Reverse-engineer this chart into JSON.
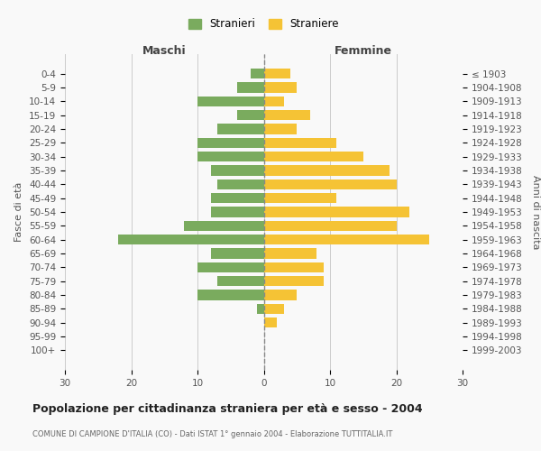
{
  "age_groups": [
    "0-4",
    "5-9",
    "10-14",
    "15-19",
    "20-24",
    "25-29",
    "30-34",
    "35-39",
    "40-44",
    "45-49",
    "50-54",
    "55-59",
    "60-64",
    "65-69",
    "70-74",
    "75-79",
    "80-84",
    "85-89",
    "90-94",
    "95-99",
    "100+"
  ],
  "birth_years": [
    "1999-2003",
    "1994-1998",
    "1989-1993",
    "1984-1988",
    "1979-1983",
    "1974-1978",
    "1969-1973",
    "1964-1968",
    "1959-1963",
    "1954-1958",
    "1949-1953",
    "1944-1948",
    "1939-1943",
    "1934-1938",
    "1929-1933",
    "1924-1928",
    "1919-1923",
    "1914-1918",
    "1909-1913",
    "1904-1908",
    "≤ 1903"
  ],
  "maschi": [
    2,
    4,
    10,
    4,
    7,
    10,
    10,
    8,
    7,
    8,
    8,
    12,
    22,
    8,
    10,
    7,
    10,
    1,
    0,
    0,
    0
  ],
  "femmine": [
    4,
    5,
    3,
    7,
    5,
    11,
    15,
    19,
    20,
    11,
    22,
    20,
    25,
    8,
    9,
    9,
    5,
    3,
    2,
    0,
    0
  ],
  "color_maschi": "#7aab5e",
  "color_femmine": "#f5c335",
  "background_color": "#f9f9f9",
  "grid_color": "#cccccc",
  "title": "Popolazione per cittadinanza straniera per età e sesso - 2004",
  "subtitle": "COMUNE DI CAMPIONE D'ITALIA (CO) - Dati ISTAT 1° gennaio 2004 - Elaborazione TUTTITALIA.IT",
  "xlabel_left": "Maschi",
  "xlabel_right": "Femmine",
  "ylabel_left": "Fasce di età",
  "ylabel_right": "Anni di nascita",
  "legend_maschi": "Stranieri",
  "legend_femmine": "Straniere",
  "xlim": 30
}
